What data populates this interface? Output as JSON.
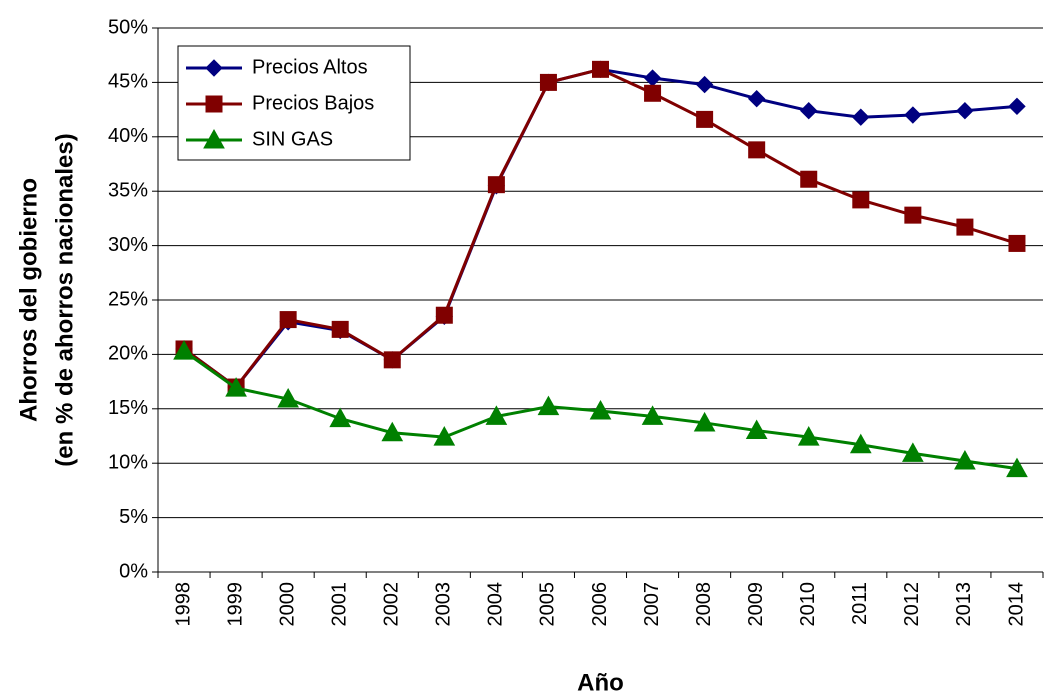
{
  "chart_data": {
    "type": "line",
    "y_label": [
      "Ahorros del gobierno",
      "(en % de ahorros nacionales)"
    ],
    "x_label": "Año",
    "categories": [
      "1998",
      "1999",
      "2000",
      "2001",
      "2002",
      "2003",
      "2004",
      "2005",
      "2006",
      "2007",
      "2008",
      "2009",
      "2010",
      "2011",
      "2012",
      "2013",
      "2014"
    ],
    "series": [
      {
        "name": "Precios Altos",
        "color": "#000080",
        "marker": "diamond",
        "values": [
          20.5,
          17,
          23,
          22.2,
          19.5,
          23.5,
          35.5,
          45,
          46.2,
          45.4,
          44.8,
          43.5,
          42.4,
          41.8,
          42.0,
          42.4,
          42.8
        ]
      },
      {
        "name": "Precios Bajos",
        "color": "#800000",
        "marker": "square",
        "values": [
          20.5,
          17,
          23.2,
          22.3,
          19.5,
          23.6,
          35.6,
          45,
          46.2,
          44,
          41.6,
          38.8,
          36.1,
          34.2,
          32.8,
          31.7,
          30.2
        ]
      },
      {
        "name": "SIN GAS",
        "color": "#008000",
        "marker": "triangle",
        "values": [
          20.3,
          16.9,
          15.9,
          14.1,
          12.8,
          12.4,
          14.3,
          15.2,
          14.8,
          14.3,
          13.7,
          13.0,
          12.4,
          11.7,
          10.9,
          10.2,
          9.5
        ]
      }
    ],
    "ylim": [
      0,
      50
    ],
    "yticks": [
      {
        "value": 0,
        "label": "0%"
      },
      {
        "value": 5,
        "label": "5%"
      },
      {
        "value": 10,
        "label": "10%"
      },
      {
        "value": 15,
        "label": "15%"
      },
      {
        "value": 20,
        "label": "20%"
      },
      {
        "value": 25,
        "label": "25%"
      },
      {
        "value": 30,
        "label": "30%"
      },
      {
        "value": 35,
        "label": "35%"
      },
      {
        "value": 40,
        "label": "40%"
      },
      {
        "value": 45,
        "label": "45%"
      },
      {
        "value": 50,
        "label": "50%"
      }
    ],
    "grid": true,
    "legend": "top-left"
  }
}
